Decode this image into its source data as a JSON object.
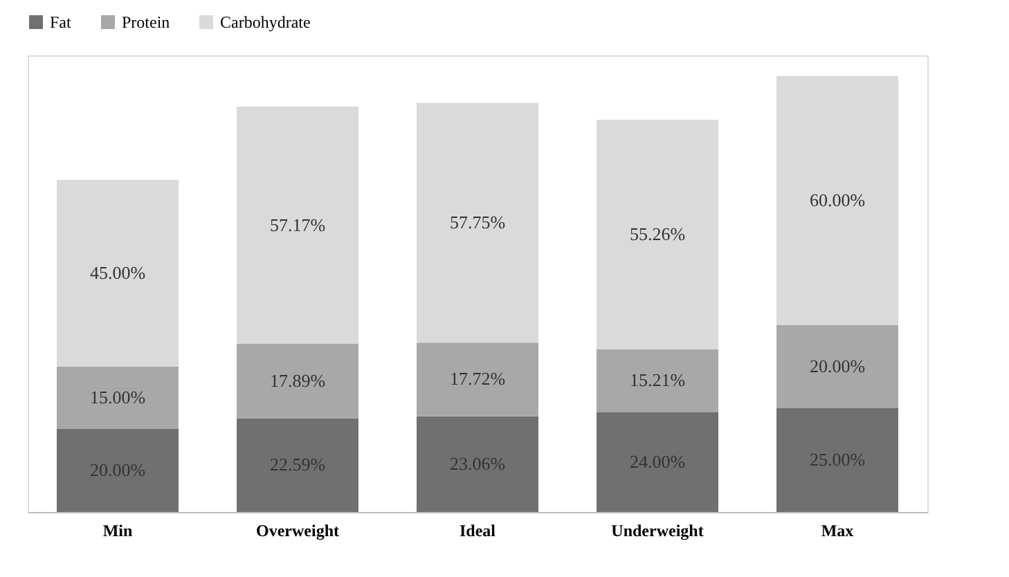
{
  "chart_data": {
    "type": "bar",
    "stacked": true,
    "legend": "top",
    "grid": false,
    "categories": [
      "Min",
      "Overweight",
      "Ideal",
      "Underweight",
      "Max"
    ],
    "series": [
      {
        "name": "Fat",
        "color": "#707070",
        "values": [
          20.0,
          22.59,
          23.06,
          24.0,
          25.0
        ],
        "value_labels": [
          "20.00%",
          "22.59%",
          "23.06%",
          "24.00%",
          "25.00%"
        ]
      },
      {
        "name": "Protein",
        "color": "#a8a8a8",
        "values": [
          15.0,
          17.89,
          17.72,
          15.21,
          20.0
        ],
        "value_labels": [
          "15.00%",
          "17.89%",
          "17.72%",
          "15.21%",
          "20.00%"
        ]
      },
      {
        "name": "Carbohydrate",
        "color": "#dadada",
        "values": [
          45.0,
          57.17,
          57.75,
          55.26,
          60.0
        ],
        "value_labels": [
          "45.00%",
          "57.17%",
          "57.75%",
          "55.26%",
          "60.00%"
        ]
      }
    ]
  }
}
